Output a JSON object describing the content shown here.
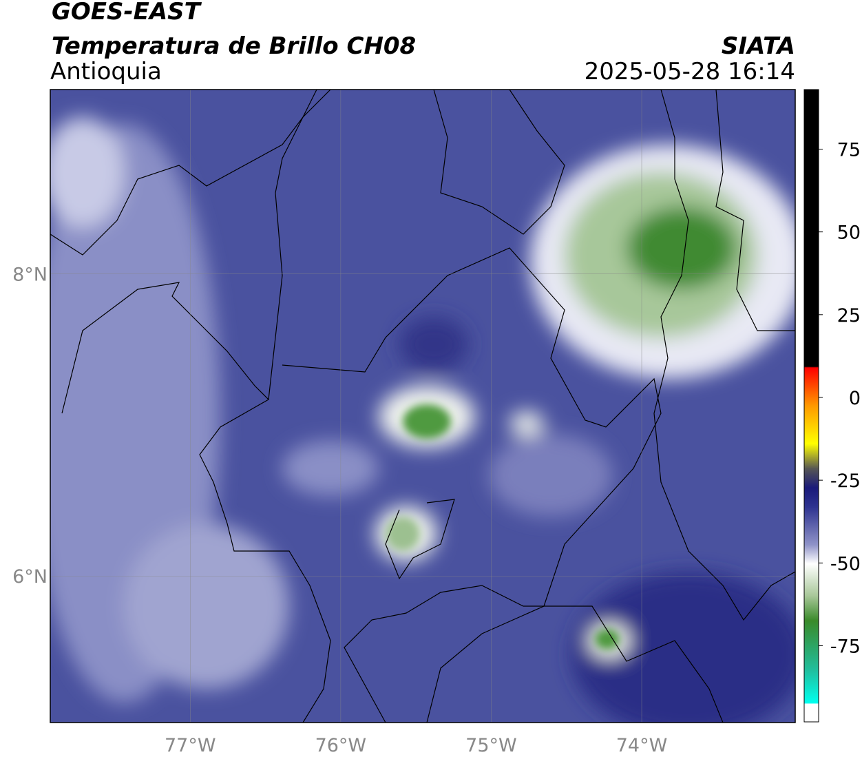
{
  "header": {
    "title": "GOES-EAST",
    "subtitle": "Temperatura de Brillo CH08",
    "region": "Antioquia",
    "source": "SIATA",
    "datetime": "2025-05-28 16:14"
  },
  "map": {
    "xlim": [
      -77.93,
      -72.98
    ],
    "ylim": [
      5.03,
      9.22
    ],
    "xticks": [
      {
        "value": -77,
        "label": "77°W"
      },
      {
        "value": -76,
        "label": "76°W"
      },
      {
        "value": -75,
        "label": "75°W"
      },
      {
        "value": -74,
        "label": "74°W"
      }
    ],
    "yticks": [
      {
        "value": 6,
        "label": "6°N"
      },
      {
        "value": 8,
        "label": "8°N"
      }
    ],
    "grid": true
  },
  "colorbar": {
    "lim": [
      -98,
      93
    ],
    "ticks": [
      75,
      50,
      25,
      0,
      -25,
      -50,
      -75
    ]
  }
}
